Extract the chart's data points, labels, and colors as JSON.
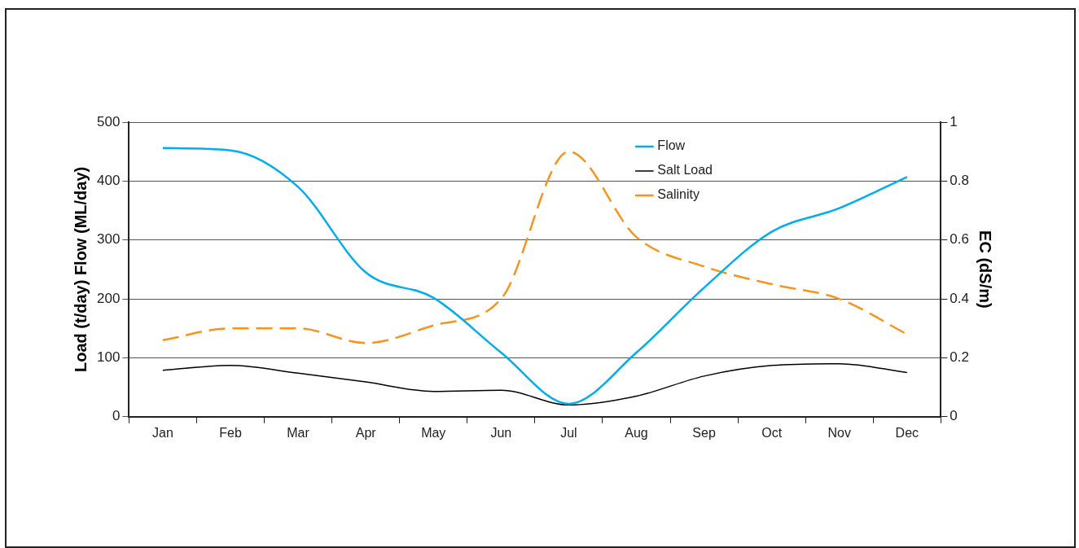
{
  "chart_data": {
    "type": "line",
    "ylabel": "Load (t/day) Flow (ML/day)",
    "y2label": "EC (dS/m)",
    "categories": [
      "Jan",
      "Feb",
      "Mar",
      "Apr",
      "May",
      "Jun",
      "Jul",
      "Aug",
      "Sep",
      "Oct",
      "Nov",
      "Dec"
    ],
    "series": [
      {
        "name": "Flow",
        "color": "#00aeef",
        "values": [
          456,
          452,
          390,
          245,
          202,
          109,
          22,
          109,
          219,
          314,
          354,
          407
        ]
      },
      {
        "name": "Salt Load",
        "color": "#000000",
        "values": [
          79,
          87,
          74,
          59,
          43,
          45,
          20,
          35,
          69,
          87,
          90,
          75
        ]
      },
      {
        "name": "Salinity",
        "color": "#f7941d",
        "axis": "y2",
        "line_style": "dashed",
        "values": [
          0.26,
          0.3,
          0.3,
          0.25,
          0.31,
          0.4,
          0.9,
          0.61,
          0.51,
          0.45,
          0.4,
          0.28
        ]
      }
    ],
    "ylim": [
      0,
      500
    ],
    "yticks": [
      0,
      100,
      200,
      300,
      400,
      500
    ],
    "y2lim": [
      0,
      1
    ],
    "y2ticks": [
      0,
      0.2,
      0.4,
      0.6,
      0.8,
      1
    ],
    "grid": "y",
    "legend": "top right",
    "marker": "none"
  }
}
